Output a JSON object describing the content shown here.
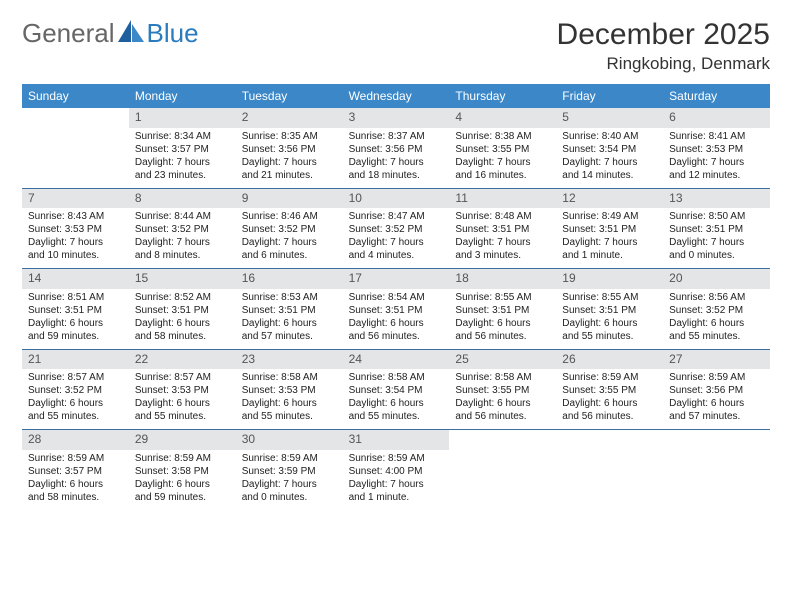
{
  "logo": {
    "text1": "General",
    "text2": "Blue"
  },
  "title": "December 2025",
  "location": "Ringkobing, Denmark",
  "colors": {
    "header_bg": "#3b87c8",
    "header_fg": "#ffffff",
    "daynum_bg": "#e4e5e6",
    "rule": "#3b6fa0",
    "logo_accent": "#2b7bbf"
  },
  "day_headers": [
    "Sunday",
    "Monday",
    "Tuesday",
    "Wednesday",
    "Thursday",
    "Friday",
    "Saturday"
  ],
  "weeks": [
    [
      {
        "n": "",
        "lines": []
      },
      {
        "n": "1",
        "lines": [
          "Sunrise: 8:34 AM",
          "Sunset: 3:57 PM",
          "Daylight: 7 hours",
          "and 23 minutes."
        ]
      },
      {
        "n": "2",
        "lines": [
          "Sunrise: 8:35 AM",
          "Sunset: 3:56 PM",
          "Daylight: 7 hours",
          "and 21 minutes."
        ]
      },
      {
        "n": "3",
        "lines": [
          "Sunrise: 8:37 AM",
          "Sunset: 3:56 PM",
          "Daylight: 7 hours",
          "and 18 minutes."
        ]
      },
      {
        "n": "4",
        "lines": [
          "Sunrise: 8:38 AM",
          "Sunset: 3:55 PM",
          "Daylight: 7 hours",
          "and 16 minutes."
        ]
      },
      {
        "n": "5",
        "lines": [
          "Sunrise: 8:40 AM",
          "Sunset: 3:54 PM",
          "Daylight: 7 hours",
          "and 14 minutes."
        ]
      },
      {
        "n": "6",
        "lines": [
          "Sunrise: 8:41 AM",
          "Sunset: 3:53 PM",
          "Daylight: 7 hours",
          "and 12 minutes."
        ]
      }
    ],
    [
      {
        "n": "7",
        "lines": [
          "Sunrise: 8:43 AM",
          "Sunset: 3:53 PM",
          "Daylight: 7 hours",
          "and 10 minutes."
        ]
      },
      {
        "n": "8",
        "lines": [
          "Sunrise: 8:44 AM",
          "Sunset: 3:52 PM",
          "Daylight: 7 hours",
          "and 8 minutes."
        ]
      },
      {
        "n": "9",
        "lines": [
          "Sunrise: 8:46 AM",
          "Sunset: 3:52 PM",
          "Daylight: 7 hours",
          "and 6 minutes."
        ]
      },
      {
        "n": "10",
        "lines": [
          "Sunrise: 8:47 AM",
          "Sunset: 3:52 PM",
          "Daylight: 7 hours",
          "and 4 minutes."
        ]
      },
      {
        "n": "11",
        "lines": [
          "Sunrise: 8:48 AM",
          "Sunset: 3:51 PM",
          "Daylight: 7 hours",
          "and 3 minutes."
        ]
      },
      {
        "n": "12",
        "lines": [
          "Sunrise: 8:49 AM",
          "Sunset: 3:51 PM",
          "Daylight: 7 hours",
          "and 1 minute."
        ]
      },
      {
        "n": "13",
        "lines": [
          "Sunrise: 8:50 AM",
          "Sunset: 3:51 PM",
          "Daylight: 7 hours",
          "and 0 minutes."
        ]
      }
    ],
    [
      {
        "n": "14",
        "lines": [
          "Sunrise: 8:51 AM",
          "Sunset: 3:51 PM",
          "Daylight: 6 hours",
          "and 59 minutes."
        ]
      },
      {
        "n": "15",
        "lines": [
          "Sunrise: 8:52 AM",
          "Sunset: 3:51 PM",
          "Daylight: 6 hours",
          "and 58 minutes."
        ]
      },
      {
        "n": "16",
        "lines": [
          "Sunrise: 8:53 AM",
          "Sunset: 3:51 PM",
          "Daylight: 6 hours",
          "and 57 minutes."
        ]
      },
      {
        "n": "17",
        "lines": [
          "Sunrise: 8:54 AM",
          "Sunset: 3:51 PM",
          "Daylight: 6 hours",
          "and 56 minutes."
        ]
      },
      {
        "n": "18",
        "lines": [
          "Sunrise: 8:55 AM",
          "Sunset: 3:51 PM",
          "Daylight: 6 hours",
          "and 56 minutes."
        ]
      },
      {
        "n": "19",
        "lines": [
          "Sunrise: 8:55 AM",
          "Sunset: 3:51 PM",
          "Daylight: 6 hours",
          "and 55 minutes."
        ]
      },
      {
        "n": "20",
        "lines": [
          "Sunrise: 8:56 AM",
          "Sunset: 3:52 PM",
          "Daylight: 6 hours",
          "and 55 minutes."
        ]
      }
    ],
    [
      {
        "n": "21",
        "lines": [
          "Sunrise: 8:57 AM",
          "Sunset: 3:52 PM",
          "Daylight: 6 hours",
          "and 55 minutes."
        ]
      },
      {
        "n": "22",
        "lines": [
          "Sunrise: 8:57 AM",
          "Sunset: 3:53 PM",
          "Daylight: 6 hours",
          "and 55 minutes."
        ]
      },
      {
        "n": "23",
        "lines": [
          "Sunrise: 8:58 AM",
          "Sunset: 3:53 PM",
          "Daylight: 6 hours",
          "and 55 minutes."
        ]
      },
      {
        "n": "24",
        "lines": [
          "Sunrise: 8:58 AM",
          "Sunset: 3:54 PM",
          "Daylight: 6 hours",
          "and 55 minutes."
        ]
      },
      {
        "n": "25",
        "lines": [
          "Sunrise: 8:58 AM",
          "Sunset: 3:55 PM",
          "Daylight: 6 hours",
          "and 56 minutes."
        ]
      },
      {
        "n": "26",
        "lines": [
          "Sunrise: 8:59 AM",
          "Sunset: 3:55 PM",
          "Daylight: 6 hours",
          "and 56 minutes."
        ]
      },
      {
        "n": "27",
        "lines": [
          "Sunrise: 8:59 AM",
          "Sunset: 3:56 PM",
          "Daylight: 6 hours",
          "and 57 minutes."
        ]
      }
    ],
    [
      {
        "n": "28",
        "lines": [
          "Sunrise: 8:59 AM",
          "Sunset: 3:57 PM",
          "Daylight: 6 hours",
          "and 58 minutes."
        ]
      },
      {
        "n": "29",
        "lines": [
          "Sunrise: 8:59 AM",
          "Sunset: 3:58 PM",
          "Daylight: 6 hours",
          "and 59 minutes."
        ]
      },
      {
        "n": "30",
        "lines": [
          "Sunrise: 8:59 AM",
          "Sunset: 3:59 PM",
          "Daylight: 7 hours",
          "and 0 minutes."
        ]
      },
      {
        "n": "31",
        "lines": [
          "Sunrise: 8:59 AM",
          "Sunset: 4:00 PM",
          "Daylight: 7 hours",
          "and 1 minute."
        ]
      },
      {
        "n": "",
        "lines": []
      },
      {
        "n": "",
        "lines": []
      },
      {
        "n": "",
        "lines": []
      }
    ]
  ]
}
